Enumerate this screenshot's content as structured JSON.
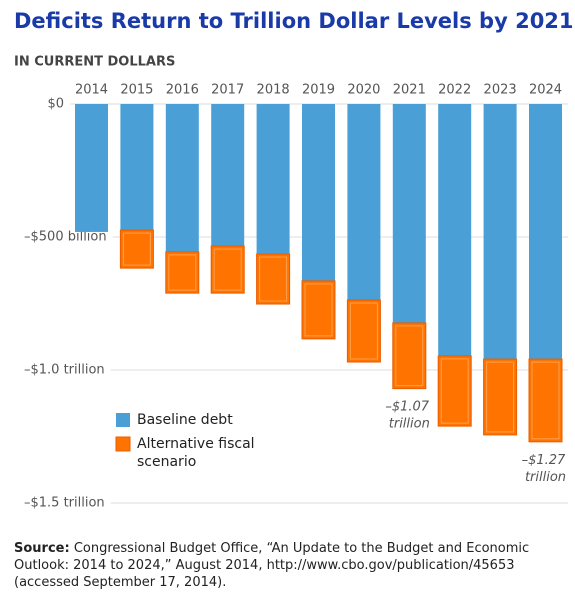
{
  "chart_data": {
    "type": "bar",
    "stacked": true,
    "title": "Deficits Return to Trillion Dollar Levels by 2021",
    "subtitle": "IN CURRENT DOLLARS",
    "categories": [
      "2014",
      "2015",
      "2016",
      "2017",
      "2018",
      "2019",
      "2020",
      "2021",
      "2022",
      "2023",
      "2024"
    ],
    "series": [
      {
        "name": "Baseline debt",
        "color": "#4a9fd6",
        "values": [
          -481,
          -474,
          -556,
          -534,
          -564,
          -665,
          -737,
          -823,
          -947,
          -959,
          -959
        ]
      },
      {
        "name": "Alternative fiscal scenario",
        "color": "#ff7300",
        "values": [
          null,
          -143,
          -155,
          -177,
          -188,
          -218,
          -233,
          -247,
          -264,
          -285,
          -311
        ]
      }
    ],
    "ylim": [
      -1500,
      0
    ],
    "yticks": [
      {
        "value": 0,
        "label": "$0"
      },
      {
        "value": -500,
        "label": "–$500 billion"
      },
      {
        "value": -1000,
        "label": "–$1.0 trillion"
      },
      {
        "value": -1500,
        "label": "–$1.5 trillion"
      }
    ],
    "grid": true,
    "annotations": [
      {
        "x": "2021",
        "value": -1070,
        "label": "–$1.07 trillion"
      },
      {
        "x": "2024",
        "value": -1270,
        "label": "–$1.27 trillion"
      }
    ],
    "source_label": "Source:",
    "source": "Congressional Budget Office, “An Update to the Budget and Economic Outlook: 2014 to 2024,” August 2014, http://www.cbo.gov/publication/45653 (accessed September 17, 2014)."
  }
}
